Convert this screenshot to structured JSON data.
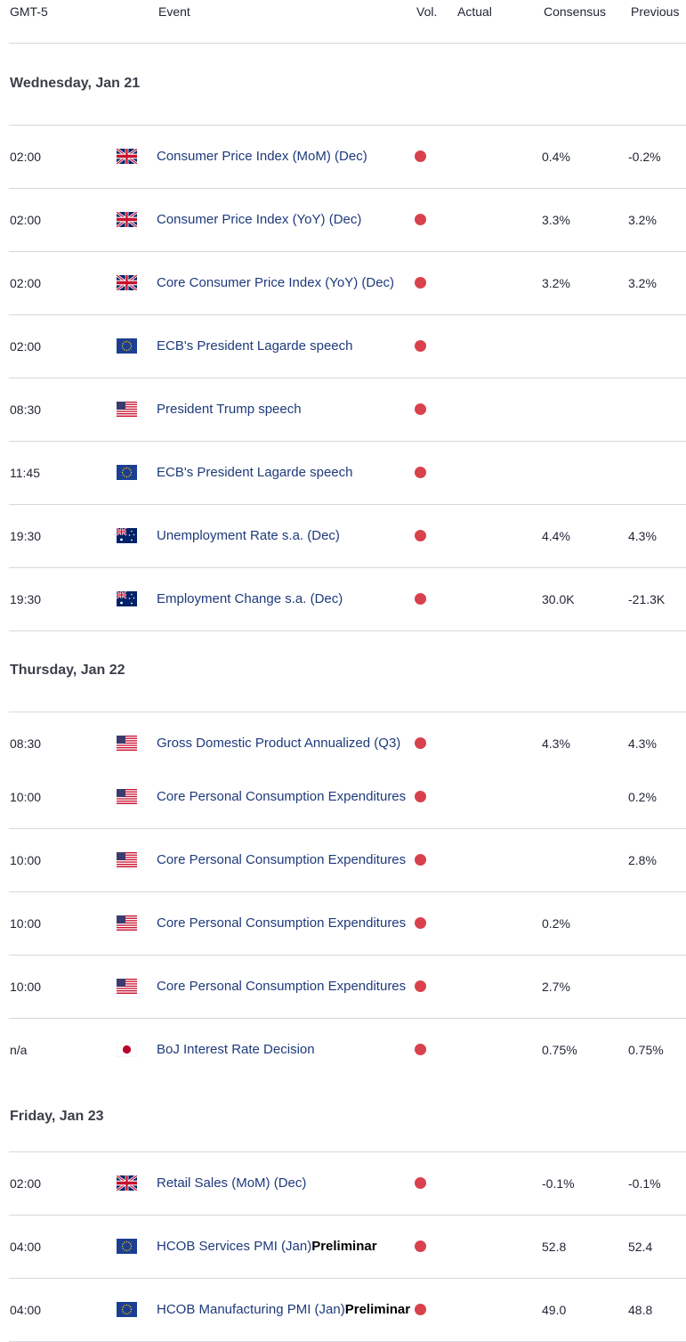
{
  "header": {
    "timezone": "GMT-5",
    "event": "Event",
    "vol": "Vol.",
    "actual": "Actual",
    "consensus": "Consensus",
    "previous": "Previous"
  },
  "colors": {
    "volatility_high": "#d9414c",
    "event_link": "#1e3a7b"
  },
  "days": [
    {
      "title": "Wednesday, Jan 21",
      "events": [
        {
          "time": "02:00",
          "flag": "uk-flag-icon",
          "event": "Consumer Price Index (MoM) (Dec)",
          "suffix": "",
          "vol": "high",
          "actual": "",
          "consensus": "0.4%",
          "previous": "-0.2%"
        },
        {
          "time": "02:00",
          "flag": "uk-flag-icon",
          "event": "Consumer Price Index (YoY) (Dec)",
          "suffix": "",
          "vol": "high",
          "actual": "",
          "consensus": "3.3%",
          "previous": "3.2%"
        },
        {
          "time": "02:00",
          "flag": "uk-flag-icon",
          "event": "Core Consumer Price Index (YoY) (Dec)",
          "suffix": "",
          "vol": "high",
          "actual": "",
          "consensus": "3.2%",
          "previous": "3.2%"
        },
        {
          "time": "02:00",
          "flag": "eu-flag-icon",
          "event": "ECB's President Lagarde speech",
          "suffix": "",
          "vol": "high",
          "actual": "",
          "consensus": "",
          "previous": ""
        },
        {
          "time": "08:30",
          "flag": "us-flag-icon",
          "event": "President Trump speech",
          "suffix": "",
          "vol": "high",
          "actual": "",
          "consensus": "",
          "previous": ""
        },
        {
          "time": "11:45",
          "flag": "eu-flag-icon",
          "event": "ECB's President Lagarde speech",
          "suffix": "",
          "vol": "high",
          "actual": "",
          "consensus": "",
          "previous": ""
        },
        {
          "time": "19:30",
          "flag": "au-flag-icon",
          "event": "Unemployment Rate s.a. (Dec)",
          "suffix": "",
          "vol": "high",
          "actual": "",
          "consensus": "4.4%",
          "previous": "4.3%"
        },
        {
          "time": "19:30",
          "flag": "au-flag-icon",
          "event": "Employment Change s.a. (Dec)",
          "suffix": "",
          "vol": "high",
          "actual": "",
          "consensus": "30.0K",
          "previous": "-21.3K"
        }
      ]
    },
    {
      "title": "Thursday, Jan 22",
      "events": [
        {
          "time": "08:30",
          "flag": "us-flag-icon",
          "event": "Gross Domestic Product Annualized (Q3)",
          "suffix": "",
          "vol": "high",
          "actual": "",
          "consensus": "4.3%",
          "previous": "4.3%"
        },
        {
          "time": "10:00",
          "flag": "us-flag-icon",
          "event": "Core Personal Consumption Expenditures",
          "suffix": "",
          "vol": "high",
          "actual": "",
          "consensus": "",
          "previous": "0.2%"
        },
        {
          "time": "10:00",
          "flag": "us-flag-icon",
          "event": "Core Personal Consumption Expenditures",
          "suffix": "",
          "vol": "high",
          "actual": "",
          "consensus": "",
          "previous": "2.8%"
        },
        {
          "time": "10:00",
          "flag": "us-flag-icon",
          "event": "Core Personal Consumption Expenditures",
          "suffix": "",
          "vol": "high",
          "actual": "",
          "consensus": "0.2%",
          "previous": ""
        },
        {
          "time": "10:00",
          "flag": "us-flag-icon",
          "event": "Core Personal Consumption Expenditures",
          "suffix": "",
          "vol": "high",
          "actual": "",
          "consensus": "2.7%",
          "previous": ""
        },
        {
          "time": "n/a",
          "flag": "jp-flag-icon",
          "event": "BoJ Interest Rate Decision",
          "suffix": "",
          "vol": "high",
          "actual": "",
          "consensus": "0.75%",
          "previous": "0.75%"
        }
      ]
    },
    {
      "title": "Friday, Jan 23",
      "events": [
        {
          "time": "02:00",
          "flag": "uk-flag-icon",
          "event": "Retail Sales (MoM) (Dec)",
          "suffix": "",
          "vol": "high",
          "actual": "",
          "consensus": "-0.1%",
          "previous": "-0.1%"
        },
        {
          "time": "04:00",
          "flag": "eu-flag-icon",
          "event": "HCOB Services PMI (Jan)",
          "suffix": "Preliminar",
          "vol": "high",
          "actual": "",
          "consensus": "52.8",
          "previous": "52.4"
        },
        {
          "time": "04:00",
          "flag": "eu-flag-icon",
          "event": "HCOB Manufacturing PMI (Jan)",
          "suffix": "Preliminar",
          "vol": "high",
          "actual": "",
          "consensus": "49.0",
          "previous": "48.8"
        }
      ]
    }
  ]
}
